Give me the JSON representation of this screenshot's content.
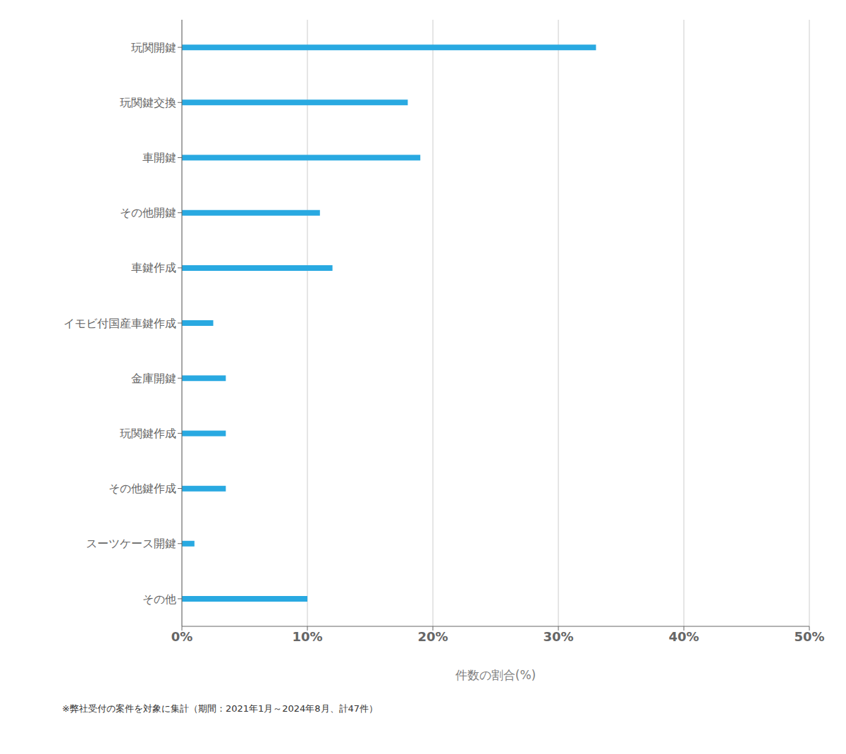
{
  "chart_data": {
    "type": "bar",
    "orientation": "horizontal",
    "categories": [
      "その他",
      "スーツケース開鍵",
      "その他鍵作成",
      "玩関鍵作成",
      "金庫開鍵",
      "イモビ付国産車鍵作成",
      "車鍵作成",
      "その他開鍵",
      "車開鍵",
      "玩関鍵交換",
      "玩関開鍵"
    ],
    "values": [
      10.0,
      1.0,
      3.5,
      3.5,
      3.5,
      2.5,
      12.0,
      11.0,
      19.0,
      18.0,
      33.0
    ],
    "color": "#29a9e1",
    "xlabel": "件数の割合(%)",
    "xlim": [
      0,
      50
    ],
    "xticks": [
      {
        "value": 0,
        "label": "0%"
      },
      {
        "value": 10,
        "label": "10%"
      },
      {
        "value": 20,
        "label": "20%"
      },
      {
        "value": 30,
        "label": "30%"
      },
      {
        "value": 40,
        "label": "40%"
      },
      {
        "value": 50,
        "label": "50%"
      }
    ],
    "grid": true,
    "footnote": "※弊社受付の案件を対象に集計（期間：2021年1月～2024年8月、計47件）"
  }
}
